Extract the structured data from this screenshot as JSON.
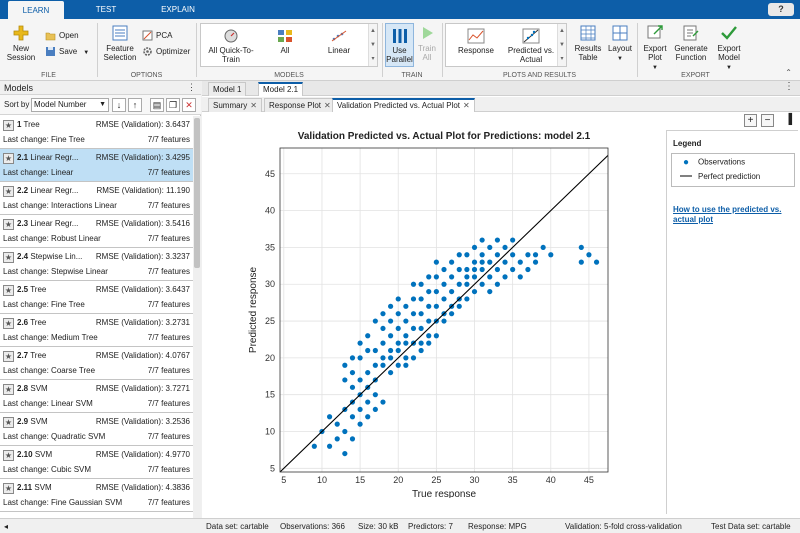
{
  "top_tabs": [
    {
      "label": "LEARN",
      "active": true
    },
    {
      "label": "TEST",
      "active": false
    },
    {
      "label": "EXPLAIN",
      "active": false
    }
  ],
  "help": "?",
  "ribbon": {
    "file": {
      "label": "FILE",
      "new_session": "New Session",
      "open": "Open",
      "save": "Save"
    },
    "options": {
      "label": "OPTIONS",
      "feature_selection": "Feature Selection",
      "pca": "PCA",
      "optimizer": "Optimizer"
    },
    "models": {
      "label": "MODELS",
      "items": [
        "All Quick-To-Train",
        "All",
        "Linear"
      ]
    },
    "train": {
      "label": "TRAIN",
      "use_parallel": "Use Parallel",
      "train_all": "Train All"
    },
    "plots": {
      "label": "PLOTS AND RESULTS",
      "response": "Response",
      "predicted_vs_actual": "Predicted vs. Actual",
      "results_table": "Results Table",
      "layout": "Layout"
    },
    "export": {
      "label": "EXPORT",
      "export_plot": "Export Plot",
      "generate_function": "Generate Function",
      "export_model": "Export Model"
    }
  },
  "models_panel": {
    "title": "Models",
    "sort_label": "Sort by",
    "sort_value": "Model Number",
    "items": [
      {
        "id": "1",
        "type": "Tree",
        "rmse": "RMSE (Validation): 3.6437",
        "last_change": "Last change: Fine Tree",
        "features": "7/7 features"
      },
      {
        "id": "2.1",
        "type": "Linear Regr...",
        "rmse": "RMSE (Validation): 3.4295",
        "last_change": "Last change: Linear",
        "features": "7/7 features"
      },
      {
        "id": "2.2",
        "type": "Linear Regr...",
        "rmse": "RMSE (Validation): 11.190",
        "last_change": "Last change: Interactions Linear",
        "features": "7/7 features"
      },
      {
        "id": "2.3",
        "type": "Linear Regr...",
        "rmse": "RMSE (Validation): 3.5416",
        "last_change": "Last change: Robust Linear",
        "features": "7/7 features"
      },
      {
        "id": "2.4",
        "type": "Stepwise Lin...",
        "rmse": "RMSE (Validation): 3.3237",
        "last_change": "Last change: Stepwise Linear",
        "features": "7/7 features"
      },
      {
        "id": "2.5",
        "type": "Tree",
        "rmse": "RMSE (Validation): 3.6437",
        "last_change": "Last change: Fine Tree",
        "features": "7/7 features"
      },
      {
        "id": "2.6",
        "type": "Tree",
        "rmse": "RMSE (Validation): 3.2731",
        "last_change": "Last change: Medium Tree",
        "features": "7/7 features"
      },
      {
        "id": "2.7",
        "type": "Tree",
        "rmse": "RMSE (Validation): 4.0767",
        "last_change": "Last change: Coarse Tree",
        "features": "7/7 features"
      },
      {
        "id": "2.8",
        "type": "SVM",
        "rmse": "RMSE (Validation): 3.7271",
        "last_change": "Last change: Linear SVM",
        "features": "7/7 features"
      },
      {
        "id": "2.9",
        "type": "SVM",
        "rmse": "RMSE (Validation): 3.2536",
        "last_change": "Last change: Quadratic SVM",
        "features": "7/7 features"
      },
      {
        "id": "2.10",
        "type": "SVM",
        "rmse": "RMSE (Validation): 4.9770",
        "last_change": "Last change: Cubic SVM",
        "features": "7/7 features"
      },
      {
        "id": "2.11",
        "type": "SVM",
        "rmse": "RMSE (Validation): 4.3836",
        "last_change": "Last change: Fine Gaussian SVM",
        "features": "7/7 features"
      }
    ]
  },
  "model_tabs": [
    "Model 1",
    "Model 2.1"
  ],
  "plot_tabs": [
    "Summary",
    "Response Plot",
    "Validation Predicted vs. Actual Plot"
  ],
  "legend": {
    "title": "Legend",
    "observations": "Observations",
    "perfect": "Perfect prediction",
    "link": "How to use the predicted vs. actual plot"
  },
  "status": {
    "dataset": "Data set: cartable",
    "observations": "Observations: 366",
    "size": "Size: 30 kB",
    "predictors": "Predictors: 7",
    "response": "Response: MPG",
    "validation": "Validation: 5-fold cross-validation",
    "test": "Test Data set: cartable"
  },
  "colors": {
    "accent": "#0d5ea8",
    "marker": "#0072bd",
    "selected": "#bfdff5"
  },
  "chart_data": {
    "type": "scatter",
    "title": "Validation Predicted vs. Actual Plot for Predictions: model 2.1",
    "xlabel": "True response",
    "ylabel": "Predicted response",
    "xlim": [
      4.5,
      47.5
    ],
    "ylim": [
      4.5,
      48.5
    ],
    "xticks": [
      5,
      10,
      15,
      20,
      25,
      30,
      35,
      40,
      45
    ],
    "yticks": [
      5,
      10,
      15,
      20,
      25,
      30,
      35,
      40,
      45
    ],
    "grid": true,
    "series": [
      {
        "name": "Observations",
        "points": [
          [
            9,
            8
          ],
          [
            10,
            10
          ],
          [
            11,
            12
          ],
          [
            11,
            8
          ],
          [
            12,
            9
          ],
          [
            12,
            11
          ],
          [
            13,
            13
          ],
          [
            13,
            10
          ],
          [
            13,
            7
          ],
          [
            14,
            14
          ],
          [
            14,
            12
          ],
          [
            14,
            16
          ],
          [
            14,
            9
          ],
          [
            13,
            17
          ],
          [
            13,
            19
          ],
          [
            14,
            20
          ],
          [
            14,
            18
          ],
          [
            15,
            13
          ],
          [
            15,
            15
          ],
          [
            15,
            11
          ],
          [
            15,
            17
          ],
          [
            15,
            20
          ],
          [
            15,
            22
          ],
          [
            16,
            14
          ],
          [
            16,
            18
          ],
          [
            16,
            16
          ],
          [
            16,
            12
          ],
          [
            16,
            21
          ],
          [
            16,
            23
          ],
          [
            17,
            15
          ],
          [
            17,
            19
          ],
          [
            17,
            21
          ],
          [
            17,
            17
          ],
          [
            17,
            25
          ],
          [
            17,
            13
          ],
          [
            18,
            20
          ],
          [
            18,
            22
          ],
          [
            18,
            24
          ],
          [
            18,
            19
          ],
          [
            18,
            26
          ],
          [
            18,
            14
          ],
          [
            19,
            21
          ],
          [
            19,
            23
          ],
          [
            19,
            25
          ],
          [
            19,
            20
          ],
          [
            19,
            18
          ],
          [
            19,
            27
          ],
          [
            20,
            22
          ],
          [
            20,
            24
          ],
          [
            20,
            26
          ],
          [
            20,
            19
          ],
          [
            20,
            21
          ],
          [
            20,
            28
          ],
          [
            21,
            23
          ],
          [
            21,
            25
          ],
          [
            21,
            27
          ],
          [
            21,
            22
          ],
          [
            21,
            20
          ],
          [
            21,
            19
          ],
          [
            22,
            24
          ],
          [
            22,
            26
          ],
          [
            22,
            28
          ],
          [
            22,
            22
          ],
          [
            22,
            20
          ],
          [
            22,
            30
          ],
          [
            23,
            24
          ],
          [
            23,
            26
          ],
          [
            23,
            28
          ],
          [
            23,
            22
          ],
          [
            23,
            30
          ],
          [
            23,
            21
          ],
          [
            24,
            25
          ],
          [
            24,
            27
          ],
          [
            24,
            29
          ],
          [
            24,
            23
          ],
          [
            24,
            31
          ],
          [
            24,
            22
          ],
          [
            25,
            27
          ],
          [
            25,
            29
          ],
          [
            25,
            31
          ],
          [
            25,
            25
          ],
          [
            25,
            23
          ],
          [
            25,
            33
          ],
          [
            26,
            28
          ],
          [
            26,
            30
          ],
          [
            26,
            32
          ],
          [
            26,
            26
          ],
          [
            26,
            25
          ],
          [
            27,
            29
          ],
          [
            27,
            31
          ],
          [
            27,
            33
          ],
          [
            27,
            27
          ],
          [
            27,
            26
          ],
          [
            28,
            30
          ],
          [
            28,
            32
          ],
          [
            28,
            34
          ],
          [
            28,
            28
          ],
          [
            28,
            27
          ],
          [
            29,
            30
          ],
          [
            29,
            32
          ],
          [
            29,
            34
          ],
          [
            29,
            28
          ],
          [
            29,
            31
          ],
          [
            30,
            31
          ],
          [
            30,
            33
          ],
          [
            30,
            35
          ],
          [
            30,
            29
          ],
          [
            30,
            32
          ],
          [
            31,
            32
          ],
          [
            31,
            34
          ],
          [
            31,
            30
          ],
          [
            31,
            33
          ],
          [
            31,
            36
          ],
          [
            32,
            31
          ],
          [
            32,
            33
          ],
          [
            32,
            35
          ],
          [
            32,
            29
          ],
          [
            33,
            32
          ],
          [
            33,
            34
          ],
          [
            33,
            36
          ],
          [
            33,
            30
          ],
          [
            34,
            31
          ],
          [
            34,
            33
          ],
          [
            34,
            35
          ],
          [
            35,
            32
          ],
          [
            35,
            34
          ],
          [
            35,
            36
          ],
          [
            36,
            33
          ],
          [
            36,
            31
          ],
          [
            37,
            34
          ],
          [
            37,
            32
          ],
          [
            38,
            34
          ],
          [
            38,
            33
          ],
          [
            39,
            35
          ],
          [
            40,
            34
          ],
          [
            44,
            35
          ],
          [
            45,
            34
          ],
          [
            46,
            33
          ],
          [
            44,
            33
          ]
        ]
      },
      {
        "name": "Perfect prediction",
        "line": [
          [
            4.5,
            4.5
          ],
          [
            48.5,
            48.5
          ]
        ]
      }
    ]
  }
}
